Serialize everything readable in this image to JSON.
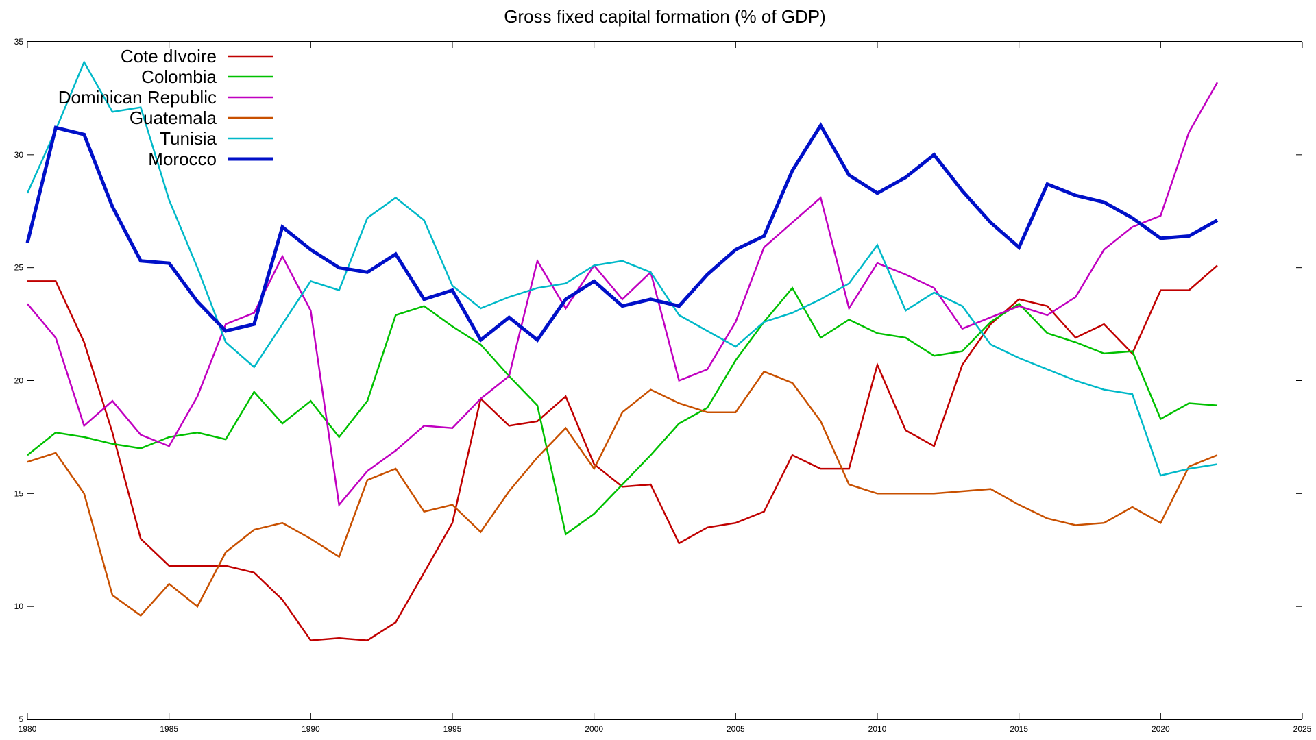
{
  "chart_data": {
    "type": "line",
    "title": "Gross fixed capital formation (% of GDP)",
    "xlabel": "",
    "ylabel": "",
    "xlim": [
      1980,
      2025
    ],
    "ylim": [
      5,
      35
    ],
    "xticks": [
      1980,
      1985,
      1990,
      1995,
      2000,
      2005,
      2010,
      2015,
      2020,
      2025
    ],
    "yticks": [
      5,
      10,
      15,
      20,
      25,
      30,
      35
    ],
    "grid": false,
    "legend_position": "top-left",
    "x": [
      1980,
      1981,
      1982,
      1983,
      1984,
      1985,
      1986,
      1987,
      1988,
      1989,
      1990,
      1991,
      1992,
      1993,
      1994,
      1995,
      1996,
      1997,
      1998,
      1999,
      2000,
      2001,
      2002,
      2003,
      2004,
      2005,
      2006,
      2007,
      2008,
      2009,
      2010,
      2011,
      2012,
      2013,
      2014,
      2015,
      2016,
      2017,
      2018,
      2019,
      2020,
      2021,
      2022
    ],
    "series": [
      {
        "name": "Cote dIvoire",
        "color": "#c00000",
        "width": 2.5,
        "values": [
          24.4,
          24.4,
          21.7,
          17.7,
          13.0,
          11.8,
          11.8,
          11.8,
          11.5,
          10.3,
          8.5,
          8.6,
          8.5,
          9.3,
          11.5,
          13.7,
          19.2,
          18.0,
          18.2,
          19.3,
          16.3,
          15.3,
          15.4,
          12.8,
          13.5,
          13.7,
          14.2,
          16.7,
          16.1,
          16.1,
          20.7,
          17.8,
          17.1,
          20.7,
          22.5,
          23.6,
          23.3,
          21.9,
          22.5,
          21.2,
          24.0,
          24.0,
          25.1
        ]
      },
      {
        "name": "Colombia",
        "color": "#00c000",
        "width": 2.5,
        "values": [
          16.7,
          17.7,
          17.5,
          17.2,
          17.0,
          17.5,
          17.7,
          17.4,
          19.5,
          18.1,
          19.1,
          17.5,
          19.1,
          22.9,
          23.3,
          22.4,
          21.6,
          20.2,
          18.9,
          13.2,
          14.1,
          15.4,
          16.7,
          18.1,
          18.8,
          20.9,
          22.6,
          24.1,
          21.9,
          22.7,
          22.1,
          21.9,
          21.1,
          21.3,
          22.6,
          23.4,
          22.1,
          21.7,
          21.2,
          21.3,
          18.3,
          19.0,
          18.9
        ]
      },
      {
        "name": "Dominican Republic",
        "color": "#c000c0",
        "width": 2.5,
        "values": [
          23.4,
          21.9,
          18.0,
          19.1,
          17.6,
          17.1,
          19.3,
          22.5,
          23.0,
          25.5,
          23.1,
          14.5,
          16.0,
          16.9,
          18.0,
          17.9,
          19.2,
          20.2,
          25.3,
          23.2,
          25.1,
          23.6,
          24.8,
          20.0,
          20.5,
          22.6,
          25.9,
          27.0,
          28.1,
          23.2,
          25.2,
          24.7,
          24.1,
          22.3,
          22.8,
          23.3,
          22.9,
          23.7,
          25.8,
          26.8,
          27.3,
          31.0,
          33.2
        ]
      },
      {
        "name": "Guatemala",
        "color": "#c85000",
        "width": 2.5,
        "values": [
          16.4,
          16.8,
          15.0,
          10.5,
          9.6,
          11.0,
          10.0,
          12.4,
          13.4,
          13.7,
          13.0,
          12.2,
          15.6,
          16.1,
          14.2,
          14.5,
          13.3,
          15.1,
          16.6,
          17.9,
          16.1,
          18.6,
          19.6,
          19.0,
          18.6,
          18.6,
          20.4,
          19.9,
          18.2,
          15.4,
          15.0,
          15.0,
          15.0,
          15.1,
          15.2,
          14.5,
          13.9,
          13.6,
          13.7,
          14.4,
          13.7,
          16.2,
          16.7
        ]
      },
      {
        "name": "Tunisia",
        "color": "#00b8c8",
        "width": 2.5,
        "values": [
          28.3,
          31.1,
          34.1,
          31.9,
          32.1,
          28.0,
          25.0,
          21.7,
          20.6,
          22.5,
          24.4,
          24.0,
          27.2,
          28.1,
          27.1,
          24.2,
          23.2,
          23.7,
          24.1,
          24.3,
          25.1,
          25.3,
          24.8,
          22.9,
          22.2,
          21.5,
          22.6,
          23.0,
          23.6,
          24.3,
          26.0,
          23.1,
          23.9,
          23.3,
          21.6,
          21.0,
          20.5,
          20.0,
          19.6,
          19.4,
          15.8,
          16.1,
          16.3
        ]
      },
      {
        "name": "Morocco",
        "color": "#0010c8",
        "width": 5,
        "values": [
          26.1,
          31.2,
          30.9,
          27.7,
          25.3,
          25.2,
          23.5,
          22.2,
          22.5,
          26.8,
          25.8,
          25.0,
          24.8,
          25.6,
          23.6,
          24.0,
          21.8,
          22.8,
          21.8,
          23.6,
          24.4,
          23.3,
          23.6,
          23.3,
          24.7,
          25.8,
          26.4,
          29.3,
          31.3,
          29.1,
          28.3,
          29.0,
          30.0,
          28.4,
          27.0,
          25.9,
          28.7,
          28.2,
          27.9,
          27.2,
          26.3,
          26.4,
          27.1
        ]
      }
    ]
  }
}
